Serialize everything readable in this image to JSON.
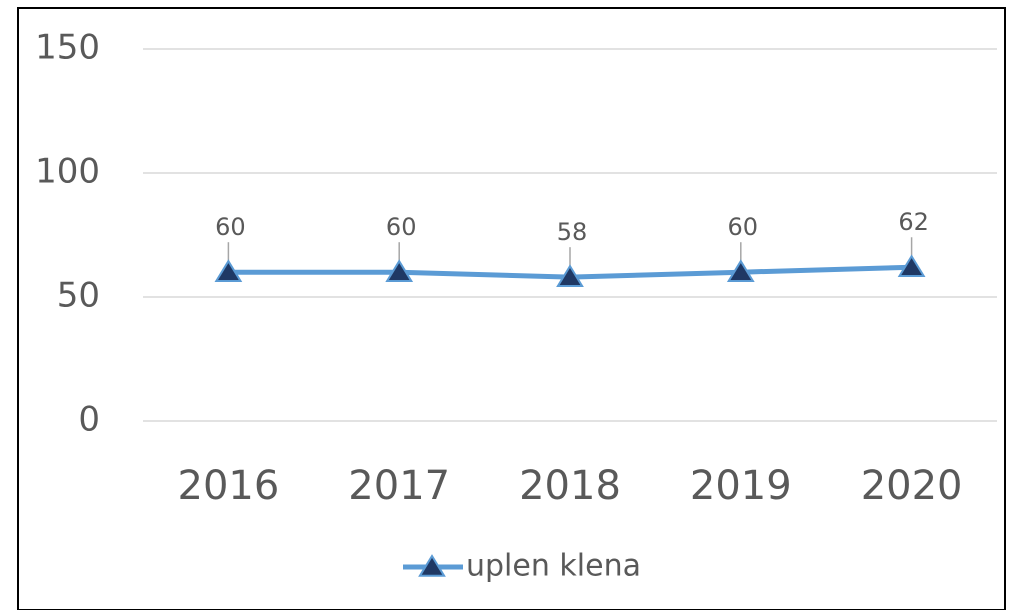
{
  "chart_data": {
    "type": "line",
    "categories": [
      "2016",
      "2017",
      "2018",
      "2019",
      "2020"
    ],
    "series": [
      {
        "name": "uplen klena",
        "color": "#5b9bd5",
        "marker_color": "#1f3864",
        "values": [
          60,
          60,
          58,
          60,
          62
        ]
      }
    ],
    "ylim": [
      0,
      150
    ],
    "yticks": [
      0,
      50,
      100,
      150
    ],
    "grid": true,
    "legend": "bottom"
  }
}
